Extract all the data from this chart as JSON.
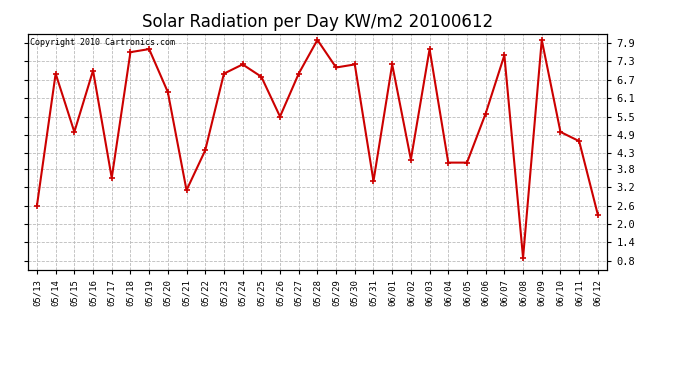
{
  "title": "Solar Radiation per Day KW/m2 20100612",
  "copyright_text": "Copyright 2010 Cartronics.com",
  "dates": [
    "05/13",
    "05/14",
    "05/15",
    "05/16",
    "05/17",
    "05/18",
    "05/19",
    "05/20",
    "05/21",
    "05/22",
    "05/23",
    "05/24",
    "05/25",
    "05/26",
    "05/27",
    "05/28",
    "05/29",
    "05/30",
    "05/31",
    "06/01",
    "06/02",
    "06/03",
    "06/04",
    "06/05",
    "06/06",
    "06/07",
    "06/08",
    "06/09",
    "06/10",
    "06/11",
    "06/12"
  ],
  "values": [
    2.6,
    6.9,
    5.0,
    7.0,
    3.5,
    7.6,
    7.7,
    6.3,
    3.1,
    4.4,
    6.9,
    7.2,
    6.8,
    5.5,
    6.9,
    8.0,
    7.1,
    7.2,
    3.4,
    7.2,
    4.1,
    7.7,
    4.0,
    4.0,
    5.6,
    7.5,
    0.9,
    8.0,
    5.0,
    4.7,
    2.3
  ],
  "line_color": "#cc0000",
  "marker": "+",
  "marker_size": 5,
  "marker_linewidth": 1.2,
  "line_width": 1.5,
  "ylim_min": 0.5,
  "ylim_max": 8.2,
  "yticks": [
    0.8,
    1.4,
    2.0,
    2.6,
    3.2,
    3.8,
    4.3,
    4.9,
    5.5,
    6.1,
    6.7,
    7.3,
    7.9
  ],
  "background_color": "#ffffff",
  "plot_bg_color": "#ffffff",
  "grid_color": "#bbbbbb",
  "title_fontsize": 12,
  "tick_fontsize": 6.5,
  "copyright_fontsize": 6
}
